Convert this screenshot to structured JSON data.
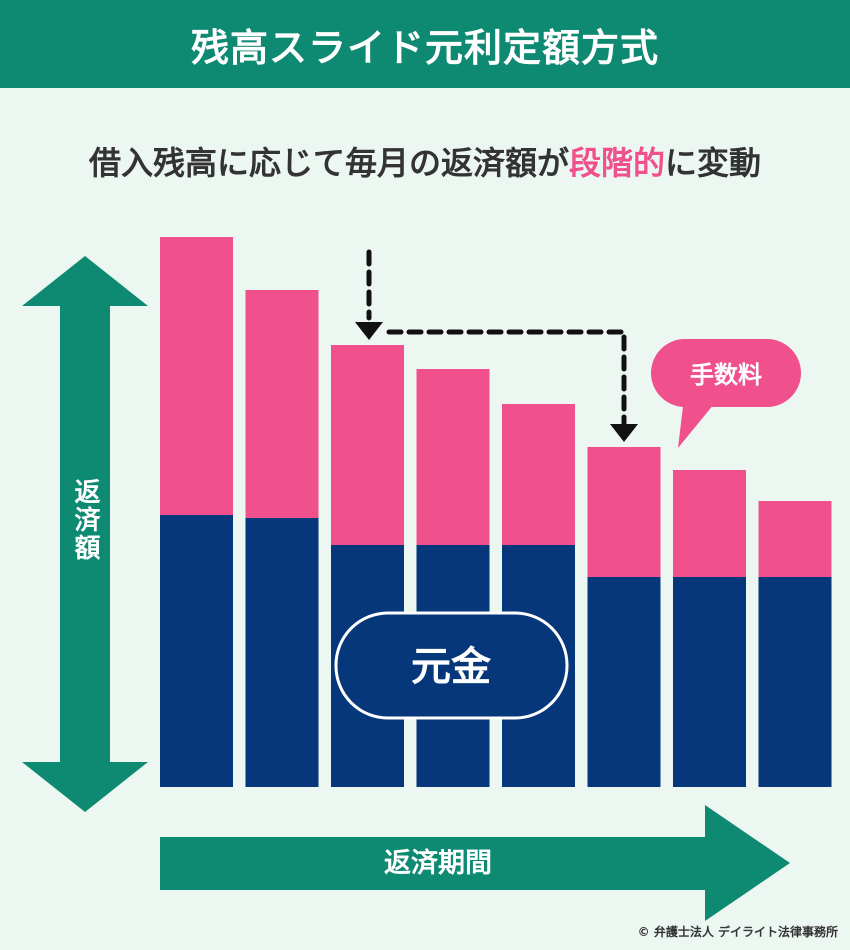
{
  "title": "残高スライド元利定額方式",
  "subtitle": {
    "before": "借入残高に応じて毎月の返済額が",
    "highlight": "段階的",
    "after": "に変動"
  },
  "labels": {
    "vertical_axis": "返済額",
    "horizontal_axis": "返済期間",
    "principal": "元金",
    "fee": "手数料"
  },
  "colors": {
    "teal": "#0f8a72",
    "pink": "#f0508c",
    "navy": "#05377a",
    "background": "#ecf7f2"
  },
  "chart_data": {
    "type": "bar",
    "stacked": true,
    "series": [
      {
        "name": "元金",
        "values": [
          272,
          269,
          242,
          242,
          242,
          210,
          210,
          210
        ]
      },
      {
        "name": "手数料",
        "values": [
          278,
          228,
          200,
          176,
          141,
          130,
          107,
          76
        ]
      }
    ]
  },
  "copyright": "© 弁護士法人 デイライト法律事務所"
}
